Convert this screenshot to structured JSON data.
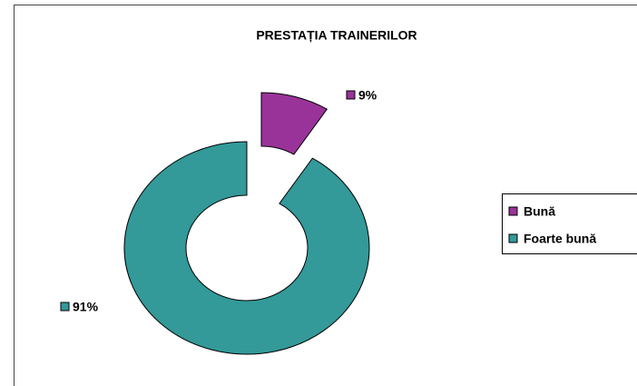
{
  "chart_data": {
    "type": "donut",
    "title": "PRESTAȚIA TRAINERILOR",
    "categories": [
      "Bună",
      "Foarte bună"
    ],
    "values": [
      9,
      91
    ],
    "value_labels": [
      "9%",
      "91%"
    ],
    "colors": [
      "#993399",
      "#339999"
    ],
    "exploded": [
      true,
      false
    ],
    "legend": "right"
  }
}
